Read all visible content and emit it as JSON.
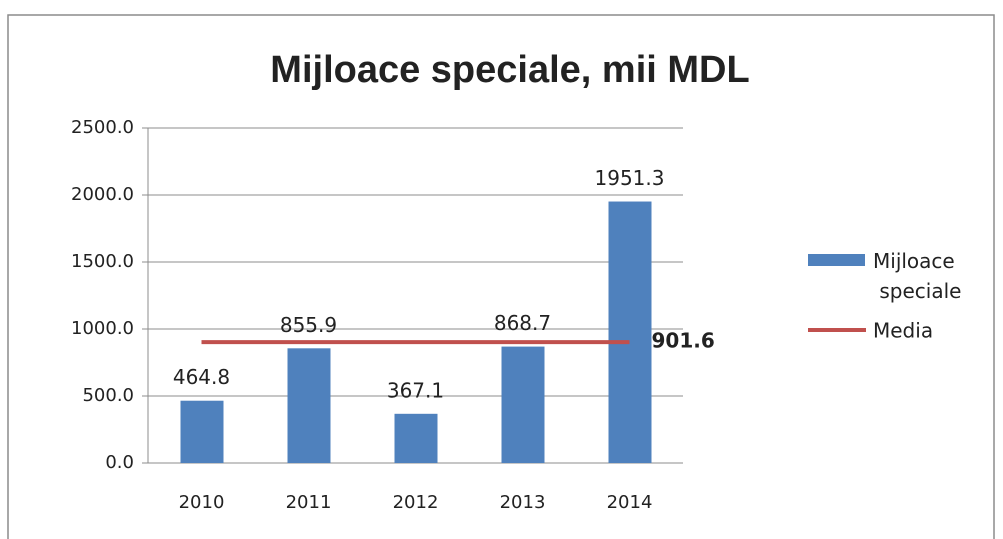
{
  "chart_data": {
    "type": "bar",
    "title": "Mijloace speciale, mii MDL",
    "categories": [
      "2010",
      "2011",
      "2012",
      "2013",
      "2014"
    ],
    "series": [
      {
        "name": "Mijloace speciale",
        "color": "#4f81bd",
        "values": [
          464.8,
          855.9,
          367.1,
          868.7,
          1951.3
        ]
      },
      {
        "name": "Media",
        "type": "line",
        "color": "#c0504d",
        "values": [
          901.6,
          901.6,
          901.6,
          901.6,
          901.6
        ]
      }
    ],
    "ylim": [
      0,
      2500
    ],
    "yticks": [
      {
        "value": 0,
        "label": "0.0"
      },
      {
        "value": 500,
        "label": "500.0"
      },
      {
        "value": 1000,
        "label": "1000.0"
      },
      {
        "value": 1500,
        "label": "1500.0"
      },
      {
        "value": 2000,
        "label": "2000.0"
      },
      {
        "value": 2500,
        "label": "2500.0"
      }
    ],
    "grid": true,
    "legend": "right"
  }
}
